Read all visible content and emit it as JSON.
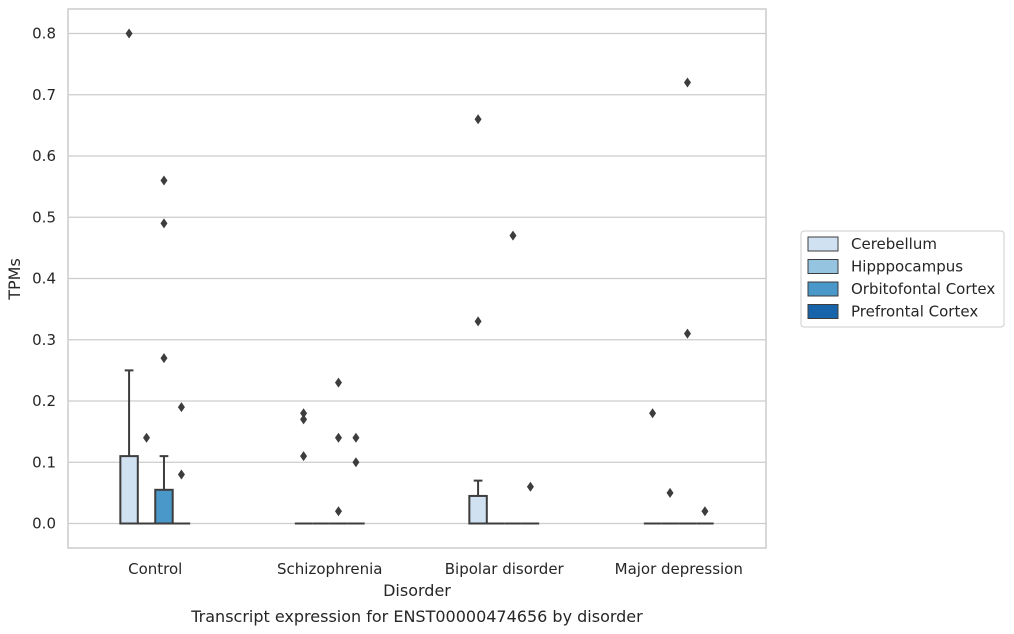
{
  "chart_data": {
    "type": "box",
    "title": "",
    "caption": "Transcript expression for ENST00000474656 by disorder",
    "xlabel": "Disorder",
    "ylabel": "TPMs",
    "ylim": [
      -0.04,
      0.84
    ],
    "yticks": [
      "0.0",
      "0.1",
      "0.2",
      "0.3",
      "0.4",
      "0.5",
      "0.6",
      "0.7",
      "0.8"
    ],
    "ytick_values": [
      0,
      0.1,
      0.2,
      0.3,
      0.4,
      0.5,
      0.6,
      0.7,
      0.8
    ],
    "grid": true,
    "legend_position": "right",
    "categories": [
      "Control",
      "Schizophrenia",
      "Bipolar disorder",
      "Major depression"
    ],
    "series": [
      {
        "name": "Cerebellum",
        "color": "#d0e1f2",
        "boxes": [
          {
            "q1": 0,
            "median": 0,
            "q3": 0.11,
            "whisker_low": 0,
            "whisker_high": 0.25,
            "outliers": [
              0.8
            ]
          },
          {
            "q1": 0,
            "median": 0,
            "q3": 0,
            "whisker_low": 0,
            "whisker_high": 0,
            "outliers": [
              0.18,
              0.17,
              0.11
            ]
          },
          {
            "q1": 0,
            "median": 0,
            "q3": 0.045,
            "whisker_low": 0,
            "whisker_high": 0.07,
            "outliers": [
              0.66,
              0.33
            ]
          },
          {
            "q1": 0,
            "median": 0,
            "q3": 0,
            "whisker_low": 0,
            "whisker_high": 0,
            "outliers": [
              0.18
            ]
          }
        ]
      },
      {
        "name": "Hipppocampus",
        "color": "#94c4df",
        "boxes": [
          {
            "q1": 0,
            "median": 0,
            "q3": 0,
            "whisker_low": 0,
            "whisker_high": 0,
            "outliers": [
              0.14
            ]
          },
          {
            "q1": 0,
            "median": 0,
            "q3": 0,
            "whisker_low": 0,
            "whisker_high": 0,
            "outliers": []
          },
          {
            "q1": 0,
            "median": 0,
            "q3": 0,
            "whisker_low": 0,
            "whisker_high": 0,
            "outliers": []
          },
          {
            "q1": 0,
            "median": 0,
            "q3": 0,
            "whisker_low": 0,
            "whisker_high": 0,
            "outliers": [
              0.05
            ]
          }
        ]
      },
      {
        "name": "Orbitofontal Cortex",
        "color": "#4a98c9",
        "boxes": [
          {
            "q1": 0,
            "median": 0,
            "q3": 0.055,
            "whisker_low": 0,
            "whisker_high": 0.11,
            "outliers": [
              0.56,
              0.49,
              0.27
            ]
          },
          {
            "q1": 0,
            "median": 0,
            "q3": 0,
            "whisker_low": 0,
            "whisker_high": 0,
            "outliers": [
              0.23,
              0.14,
              0.02
            ]
          },
          {
            "q1": 0,
            "median": 0,
            "q3": 0,
            "whisker_low": 0,
            "whisker_high": 0,
            "outliers": [
              0.47
            ]
          },
          {
            "q1": 0,
            "median": 0,
            "q3": 0,
            "whisker_low": 0,
            "whisker_high": 0,
            "outliers": [
              0.72,
              0.31
            ]
          }
        ]
      },
      {
        "name": "Prefrontal Cortex",
        "color": "#1764ab",
        "boxes": [
          {
            "q1": 0,
            "median": 0,
            "q3": 0,
            "whisker_low": 0,
            "whisker_high": 0,
            "outliers": [
              0.19,
              0.08
            ]
          },
          {
            "q1": 0,
            "median": 0,
            "q3": 0,
            "whisker_low": 0,
            "whisker_high": 0,
            "outliers": [
              0.14,
              0.1
            ]
          },
          {
            "q1": 0,
            "median": 0,
            "q3": 0,
            "whisker_low": 0,
            "whisker_high": 0,
            "outliers": [
              0.06
            ]
          },
          {
            "q1": 0,
            "median": 0,
            "q3": 0,
            "whisker_low": 0,
            "whisker_high": 0,
            "outliers": [
              0.02
            ]
          }
        ]
      }
    ]
  }
}
